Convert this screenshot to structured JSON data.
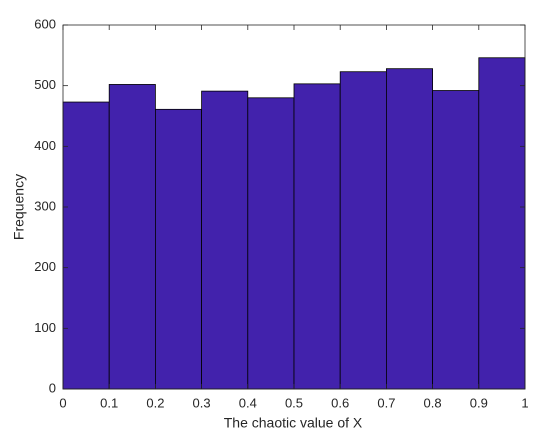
{
  "chart_data": {
    "type": "histogram",
    "xlabel": "The chaotic value of X",
    "ylabel": "Frequency",
    "bins": [
      0,
      0.1,
      0.2,
      0.3,
      0.4,
      0.5,
      0.6,
      0.7,
      0.8,
      0.9,
      1
    ],
    "values": [
      473,
      502,
      461,
      491,
      480,
      503,
      523,
      528,
      492,
      546
    ],
    "color": "#4222ac",
    "xlim": [
      0,
      1
    ],
    "xticks": [
      0,
      0.1,
      0.2,
      0.3,
      0.4,
      0.5,
      0.6,
      0.7,
      0.8,
      0.9,
      1
    ],
    "ylim": [
      0,
      600
    ],
    "yticks": [
      0,
      100,
      200,
      300,
      400,
      500,
      600
    ]
  }
}
